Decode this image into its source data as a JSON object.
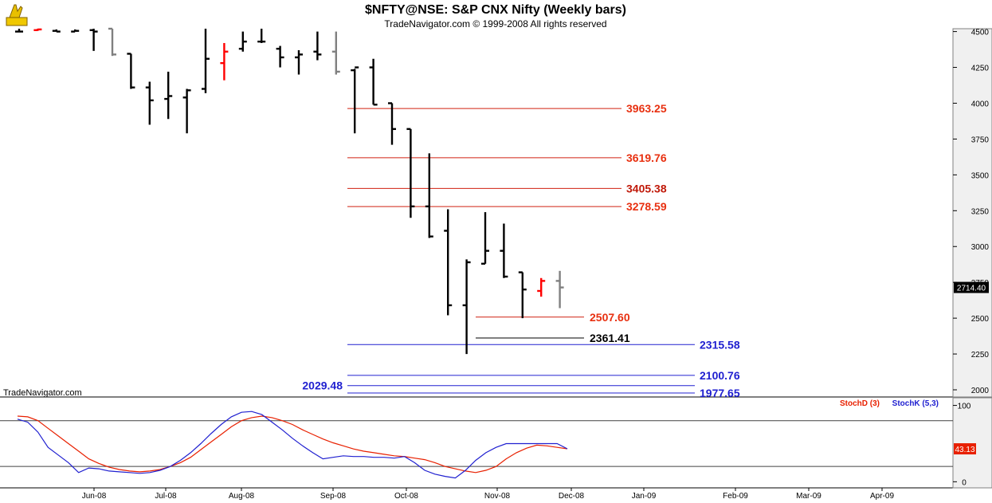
{
  "header": {
    "title": "$NFTY@NSE:  S&P CNX Nifty  (Weekly bars)",
    "copyright": "TradeNavigator.com © 1999-2008 All rights reserved",
    "watermark": "TradeNavigator.com"
  },
  "colors": {
    "up_bar": "#000000",
    "down_bar": "#000000",
    "red_bar": "#ff0000",
    "grey_bar": "#808080",
    "red_level": "#e83010",
    "blue_level": "#2020d0",
    "stoch_d": "#e82000",
    "stoch_k": "#2020d0",
    "axis_panel": "#f0f0f0"
  },
  "chart_data": [
    {
      "type": "ohlc",
      "title": "$NFTY@NSE:  S&P CNX Nifty  (Weekly bars)",
      "x_ticks": [
        "Jun-08",
        "Jul-08",
        "Aug-08",
        "Sep-08",
        "Oct-08",
        "Nov-08",
        "Dec-08",
        "Jan-09",
        "Feb-09",
        "Mar-09",
        "Apr-09"
      ],
      "y_ticks": [
        2000,
        2250,
        2500,
        2750,
        3000,
        3250,
        3500,
        3750,
        4000,
        4250,
        4500
      ],
      "ylim": [
        1950,
        4520
      ],
      "last_price_label": "2714.40",
      "bars": [
        {
          "o": 4500,
          "h": 4520,
          "l": 4500,
          "c": 4500,
          "color": "black"
        },
        {
          "o": 4510,
          "h": 4520,
          "l": 4505,
          "c": 4515,
          "color": "red"
        },
        {
          "o": 4505,
          "h": 4515,
          "l": 4500,
          "c": 4500,
          "color": "black"
        },
        {
          "o": 4500,
          "h": 4515,
          "l": 4500,
          "c": 4505,
          "color": "black"
        },
        {
          "o": 4510,
          "h": 4520,
          "l": 4365,
          "c": 4500,
          "color": "black"
        },
        {
          "o": 4520,
          "h": 4520,
          "l": 4330,
          "c": 4340,
          "color": "grey"
        },
        {
          "o": 4345,
          "h": 4345,
          "l": 4100,
          "c": 4110,
          "color": "black"
        },
        {
          "o": 4110,
          "h": 4150,
          "l": 3850,
          "c": 4020,
          "color": "black"
        },
        {
          "o": 4030,
          "h": 4220,
          "l": 3890,
          "c": 4050,
          "color": "black"
        },
        {
          "o": 4040,
          "h": 4100,
          "l": 3790,
          "c": 4090,
          "color": "black"
        },
        {
          "o": 4100,
          "h": 4520,
          "l": 4070,
          "c": 4310,
          "color": "black"
        },
        {
          "o": 4280,
          "h": 4420,
          "l": 4160,
          "c": 4360,
          "color": "red"
        },
        {
          "o": 4380,
          "h": 4500,
          "l": 4360,
          "c": 4430,
          "color": "black"
        },
        {
          "o": 4430,
          "h": 4520,
          "l": 4420,
          "c": 4430,
          "color": "black"
        },
        {
          "o": 4380,
          "h": 4400,
          "l": 4250,
          "c": 4320,
          "color": "black"
        },
        {
          "o": 4320,
          "h": 4370,
          "l": 4200,
          "c": 4340,
          "color": "black"
        },
        {
          "o": 4360,
          "h": 4500,
          "l": 4300,
          "c": 4340,
          "color": "black"
        },
        {
          "o": 4360,
          "h": 4500,
          "l": 4200,
          "c": 4220,
          "color": "grey"
        },
        {
          "o": 4230,
          "h": 4240,
          "l": 3790,
          "c": 4250,
          "color": "black"
        },
        {
          "o": 4250,
          "h": 4310,
          "l": 3990,
          "c": 3990,
          "color": "black"
        },
        {
          "o": 4000,
          "h": 4000,
          "l": 3710,
          "c": 3820,
          "color": "black"
        },
        {
          "o": 3820,
          "h": 3820,
          "l": 3200,
          "c": 3280,
          "color": "black"
        },
        {
          "o": 3280,
          "h": 3650,
          "l": 3060,
          "c": 3070,
          "color": "black"
        },
        {
          "o": 3110,
          "h": 3260,
          "l": 2520,
          "c": 2590,
          "color": "black"
        },
        {
          "o": 2590,
          "h": 2910,
          "l": 2250,
          "c": 2890,
          "color": "black"
        },
        {
          "o": 2880,
          "h": 3240,
          "l": 2880,
          "c": 2970,
          "color": "black"
        },
        {
          "o": 2970,
          "h": 3160,
          "l": 2780,
          "c": 2790,
          "color": "black"
        },
        {
          "o": 2820,
          "h": 2820,
          "l": 2500,
          "c": 2700,
          "color": "black"
        },
        {
          "o": 2690,
          "h": 2780,
          "l": 2650,
          "c": 2760,
          "color": "red"
        },
        {
          "o": 2760,
          "h": 2830,
          "l": 2570,
          "c": 2714.4,
          "color": "grey"
        }
      ],
      "levels": [
        {
          "value": 3963.25,
          "label": "3963.25",
          "color": "red"
        },
        {
          "value": 3619.76,
          "label": "3619.76",
          "color": "red"
        },
        {
          "value": 3405.38,
          "label": "3405.38",
          "color": "darkred"
        },
        {
          "value": 3278.59,
          "label": "3278.59",
          "color": "red"
        },
        {
          "value": 2507.6,
          "label": "2507.60",
          "color": "red"
        },
        {
          "value": 2361.41,
          "label": "2361.41",
          "color": "black"
        },
        {
          "value": 2315.58,
          "label": "2315.58",
          "color": "blue"
        },
        {
          "value": 2100.76,
          "label": "2100.76",
          "color": "blue"
        },
        {
          "value": 2029.48,
          "label": "2029.48",
          "color": "blue"
        },
        {
          "value": 1977.65,
          "label": "1977.65",
          "color": "blue"
        }
      ]
    },
    {
      "type": "line",
      "title": "",
      "y_ticks": [
        0,
        100
      ],
      "ylim": [
        -8,
        110
      ],
      "overbought": 80,
      "oversold": 20,
      "last_value_label": "43.13",
      "legend": [
        "StochD (3)",
        "StochK (5,3)"
      ],
      "legend_position": "top-right",
      "series": [
        {
          "name": "StochD (3)",
          "color": "red",
          "values": [
            86,
            85,
            80,
            70,
            60,
            50,
            40,
            30,
            24,
            19,
            16,
            14,
            13,
            14,
            16,
            20,
            25,
            32,
            42,
            52,
            62,
            72,
            80,
            84,
            86,
            84,
            80,
            75,
            68,
            62,
            56,
            51,
            47,
            43,
            40,
            38,
            36,
            34,
            33,
            31,
            29,
            25,
            20,
            17,
            14,
            12,
            15,
            20,
            30,
            38,
            44,
            48,
            47,
            45,
            43.13
          ]
        },
        {
          "name": "StochK (5,3)",
          "color": "blue",
          "values": [
            82,
            78,
            65,
            45,
            35,
            25,
            12,
            18,
            17,
            14,
            13,
            12,
            11,
            12,
            15,
            20,
            28,
            38,
            50,
            63,
            75,
            85,
            91,
            92,
            88,
            78,
            68,
            57,
            47,
            38,
            30,
            32,
            34,
            33,
            33,
            32,
            32,
            31,
            33,
            25,
            15,
            10,
            7,
            5,
            15,
            28,
            38,
            45,
            50,
            50,
            50,
            50,
            50,
            50,
            43.13
          ]
        }
      ]
    }
  ]
}
